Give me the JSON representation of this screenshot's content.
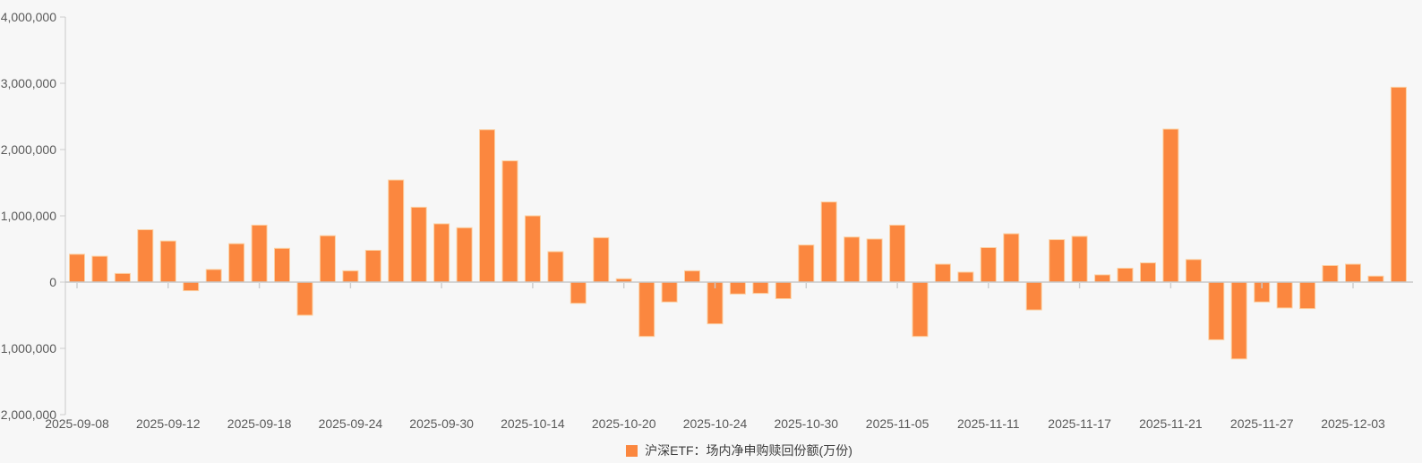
{
  "chart": {
    "legend_label": "沪深ETF：场内净申购赎回份额(万份)",
    "colors": {
      "background": "#f7f7f7",
      "bar_fill": "#fb873f",
      "bar_border": "#fcd0a2",
      "axis_line": "#c8c8c8",
      "tick_line": "#cccccc",
      "axis_label": "#595959",
      "legend_text": "#3c3c3c"
    }
  },
  "chart_data": {
    "type": "bar",
    "title": "",
    "xlabel": "",
    "ylabel": "",
    "legend_position": "bottom",
    "grid": false,
    "ylim": [
      -2000000,
      4000000
    ],
    "y_tick_labels": [
      "4,000,000",
      "3,000,000",
      "2,000,000",
      "1,000,000",
      "0",
      "-1,000,000",
      "-2,000,000"
    ],
    "y_tick_values": [
      4000000,
      3000000,
      2000000,
      1000000,
      0,
      -1000000,
      -2000000
    ],
    "categories": [
      "2025-09-08",
      "2025-09-09",
      "2025-09-10",
      "2025-09-11",
      "2025-09-12",
      "2025-09-15",
      "2025-09-16",
      "2025-09-17",
      "2025-09-18",
      "2025-09-19",
      "2025-09-22",
      "2025-09-23",
      "2025-09-24",
      "2025-09-25",
      "2025-09-26",
      "2025-09-29",
      "2025-09-30",
      "2025-10-09",
      "2025-10-10",
      "2025-10-13",
      "2025-10-14",
      "2025-10-15",
      "2025-10-16",
      "2025-10-17",
      "2025-10-20",
      "2025-10-21",
      "2025-10-22",
      "2025-10-23",
      "2025-10-24",
      "2025-10-27",
      "2025-10-28",
      "2025-10-29",
      "2025-10-30",
      "2025-10-31",
      "2025-11-03",
      "2025-11-04",
      "2025-11-05",
      "2025-11-06",
      "2025-11-07",
      "2025-11-10",
      "2025-11-11",
      "2025-11-12",
      "2025-11-13",
      "2025-11-14",
      "2025-11-17",
      "2025-11-18",
      "2025-11-19",
      "2025-11-20",
      "2025-11-21",
      "2025-11-24",
      "2025-11-25",
      "2025-11-26",
      "2025-11-27",
      "2025-11-28",
      "2025-12-01",
      "2025-12-02",
      "2025-12-03",
      "2025-12-04",
      "2025-12-05"
    ],
    "series": [
      {
        "name": "沪深ETF：场内净申购赎回份额(万份)",
        "values": [
          420000,
          390000,
          130000,
          790000,
          620000,
          -130000,
          190000,
          580000,
          860000,
          510000,
          -500000,
          700000,
          170000,
          480000,
          1540000,
          1130000,
          880000,
          820000,
          2300000,
          1830000,
          1000000,
          460000,
          -320000,
          670000,
          50000,
          -820000,
          -300000,
          170000,
          -630000,
          -180000,
          -170000,
          -250000,
          560000,
          1210000,
          680000,
          650000,
          860000,
          -820000,
          270000,
          150000,
          520000,
          730000,
          -420000,
          640000,
          690000,
          110000,
          210000,
          290000,
          2310000,
          340000,
          -870000,
          -1160000,
          -300000,
          -390000,
          -400000,
          250000,
          270000,
          90000,
          2940000
        ]
      }
    ],
    "x_tick_indices": [
      0,
      4,
      8,
      12,
      16,
      20,
      24,
      28,
      32,
      36,
      40,
      44,
      48,
      52,
      56
    ],
    "x_tick_labels": [
      "2025-09-08",
      "2025-09-12",
      "2025-09-18",
      "2025-09-24",
      "2025-09-30",
      "2025-10-14",
      "2025-10-20",
      "2025-10-24",
      "2025-10-30",
      "2025-11-05",
      "2025-11-11",
      "2025-11-17",
      "2025-11-21",
      "2025-11-27",
      "2025-12-03"
    ]
  }
}
